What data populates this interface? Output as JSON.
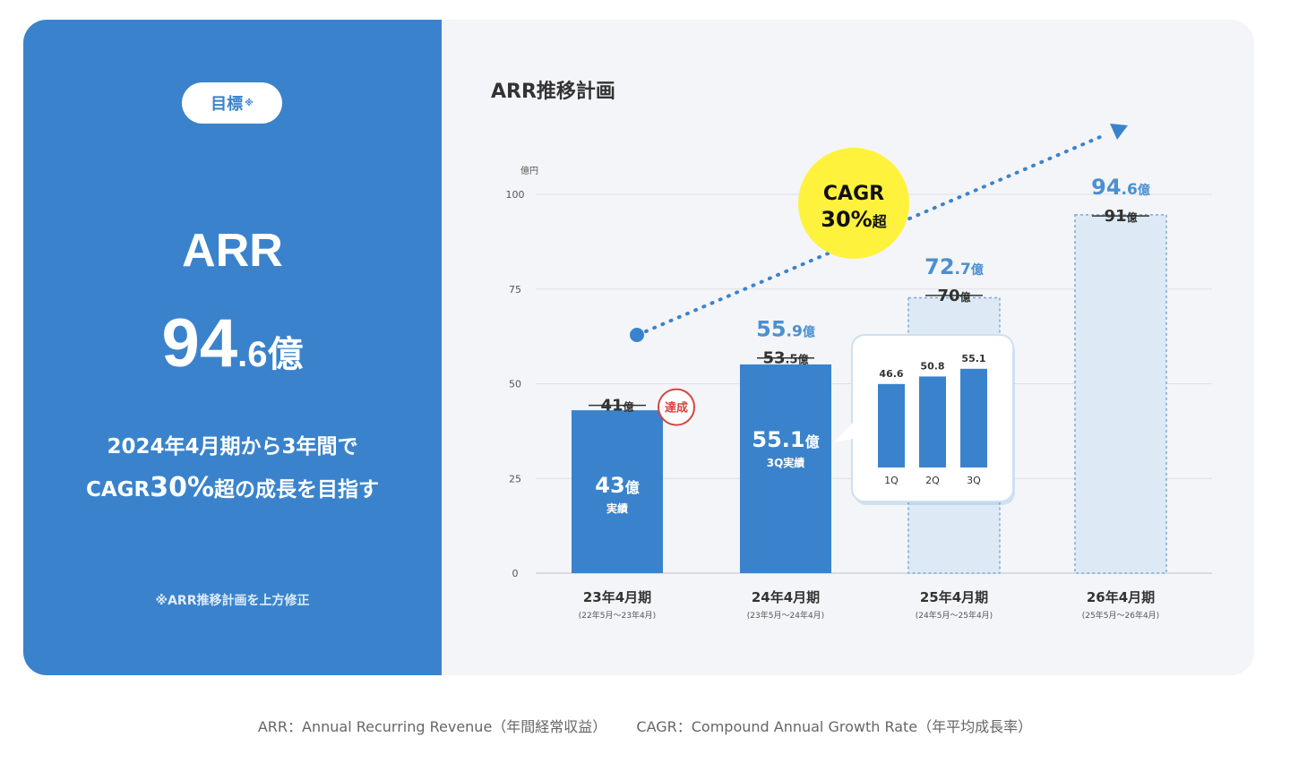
{
  "left_panel": {
    "pill_label": "目標",
    "pill_mark": "※",
    "metric": "ARR",
    "value_int": "94",
    "value_dec": ".6",
    "value_unit": "億",
    "desc_line1": "2024年4月期から3年間で",
    "desc_pre": "CAGR",
    "desc_highlight": "30%",
    "desc_post": "超の成長を目指す",
    "note": "※ARR推移計画を上方修正"
  },
  "chart_title": "ARR推移計画",
  "chart_data": {
    "type": "bar",
    "unit_label": "億円",
    "ylim": [
      0,
      100
    ],
    "yticks": [
      0,
      25,
      50,
      75,
      100
    ],
    "categories": [
      {
        "label": "23年4月期",
        "sub": "(22年5月〜23年4月)"
      },
      {
        "label": "24年4月期",
        "sub": "(23年5月〜24年4月)"
      },
      {
        "label": "25年4月期",
        "sub": "(24年5月〜25年4月)"
      },
      {
        "label": "26年4月期",
        "sub": "(25年5月〜26年4月)"
      }
    ],
    "bars": [
      {
        "value": 43,
        "kind": "actual",
        "inner_value": "43",
        "inner_unit": "億",
        "inner_caption": "実績"
      },
      {
        "value": 55.1,
        "kind": "actual",
        "inner_value": "55.1",
        "inner_unit": "億",
        "inner_caption": "3Q実績"
      },
      {
        "value": 72.7,
        "kind": "plan",
        "inner_value": "",
        "inner_unit": "",
        "inner_caption": ""
      },
      {
        "value": 94.6,
        "kind": "plan",
        "inner_value": "",
        "inner_unit": "",
        "inner_caption": ""
      }
    ],
    "new_targets": [
      null,
      {
        "num": "55",
        "dec": ".9",
        "unit": "億",
        "value": 55.9
      },
      {
        "num": "72",
        "dec": ".7",
        "unit": "億",
        "value": 72.7
      },
      {
        "num": "94",
        "dec": ".6",
        "unit": "億",
        "value": 94.6
      }
    ],
    "old_targets": [
      {
        "num": "41",
        "dec": "",
        "unit": "億",
        "value": 41
      },
      {
        "num": "53",
        "dec": ".5",
        "unit": "億",
        "value": 53.5
      },
      {
        "num": "70",
        "dec": "",
        "unit": "億",
        "value": 70
      },
      {
        "num": "91",
        "dec": "",
        "unit": "億",
        "value": 91
      }
    ],
    "achieved_stamp": "達成",
    "cagr_badge": {
      "line1": "CAGR",
      "line2": "30%",
      "line2_suffix": "超"
    },
    "quarterly_inset": {
      "categories": [
        "1Q",
        "2Q",
        "3Q"
      ],
      "values": [
        46.6,
        50.8,
        55.1
      ],
      "labels": [
        "46.6",
        "50.8",
        "55.1"
      ]
    },
    "colors": {
      "actual": "#3a83cc",
      "plan_fill": "#ddeaf5",
      "plan_border": "#7aaad6",
      "new_target": "#4a90d0",
      "old_target": "#333333",
      "badge": "#fff23c",
      "stamp": "#d9433e"
    }
  },
  "footer": {
    "arr_def": "ARR：Annual Recurring Revenue（年間経常収益）",
    "cagr_def": "CAGR：Compound Annual Growth Rate（年平均成長率）"
  }
}
